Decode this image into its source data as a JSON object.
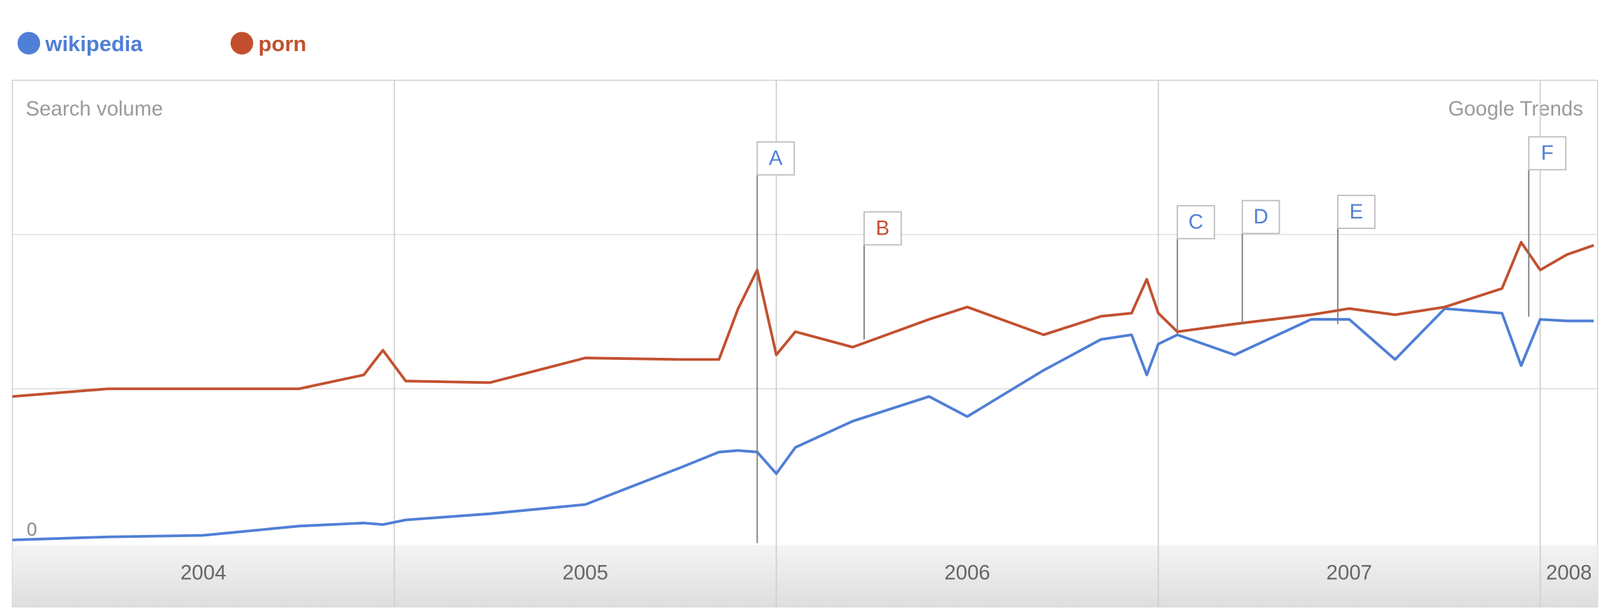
{
  "chart_data": {
    "type": "line",
    "title": "Search volume",
    "source": "Google Trends",
    "x": [
      2004.0,
      2004.25,
      2004.5,
      2004.75,
      2004.92,
      2004.97,
      2005.03,
      2005.25,
      2005.5,
      2005.75,
      2005.85,
      2005.9,
      2005.95,
      2006.0,
      2006.05,
      2006.2,
      2006.4,
      2006.5,
      2006.7,
      2006.85,
      2006.93,
      2006.97,
      2007.0,
      2007.05,
      2007.2,
      2007.4,
      2007.5,
      2007.62,
      2007.75,
      2007.9,
      2007.95,
      2008.0,
      2008.07,
      2008.14
    ],
    "series": [
      {
        "name": "wikipedia",
        "color": "#4f7fd6",
        "values": [
          0.02,
          0.04,
          0.05,
          0.11,
          0.13,
          0.12,
          0.15,
          0.19,
          0.25,
          0.49,
          0.59,
          0.6,
          0.59,
          0.45,
          0.62,
          0.79,
          0.95,
          0.82,
          1.12,
          1.32,
          1.35,
          1.09,
          1.29,
          1.35,
          1.22,
          1.45,
          1.45,
          1.19,
          1.52,
          1.49,
          1.15,
          1.45,
          1.44,
          1.44
        ]
      },
      {
        "name": "porn",
        "color": "#c2502f",
        "values": [
          0.95,
          1.0,
          1.0,
          1.0,
          1.09,
          1.25,
          1.05,
          1.04,
          1.2,
          1.19,
          1.19,
          1.52,
          1.77,
          1.22,
          1.37,
          1.27,
          1.45,
          1.53,
          1.35,
          1.47,
          1.49,
          1.71,
          1.49,
          1.37,
          1.42,
          1.48,
          1.52,
          1.48,
          1.53,
          1.65,
          1.95,
          1.77,
          1.87,
          1.93
        ]
      }
    ],
    "xlim": [
      2004.0,
      2008.15
    ],
    "xticks": [
      2004,
      2005,
      2006,
      2007,
      2008
    ],
    "ylim": [
      0,
      3
    ],
    "yticks": [
      0
    ],
    "y_gridlines": [
      1,
      2
    ],
    "annotations": [
      {
        "label": "A",
        "x": 2005.95,
        "color": "#4f7fd6"
      },
      {
        "label": "B",
        "x": 2006.23,
        "color": "#c2502f"
      },
      {
        "label": "C",
        "x": 2007.05,
        "color": "#4f7fd6"
      },
      {
        "label": "D",
        "x": 2007.22,
        "color": "#4f7fd6"
      },
      {
        "label": "E",
        "x": 2007.47,
        "color": "#4f7fd6"
      },
      {
        "label": "F",
        "x": 2007.97,
        "color": "#4f7fd6"
      }
    ]
  }
}
